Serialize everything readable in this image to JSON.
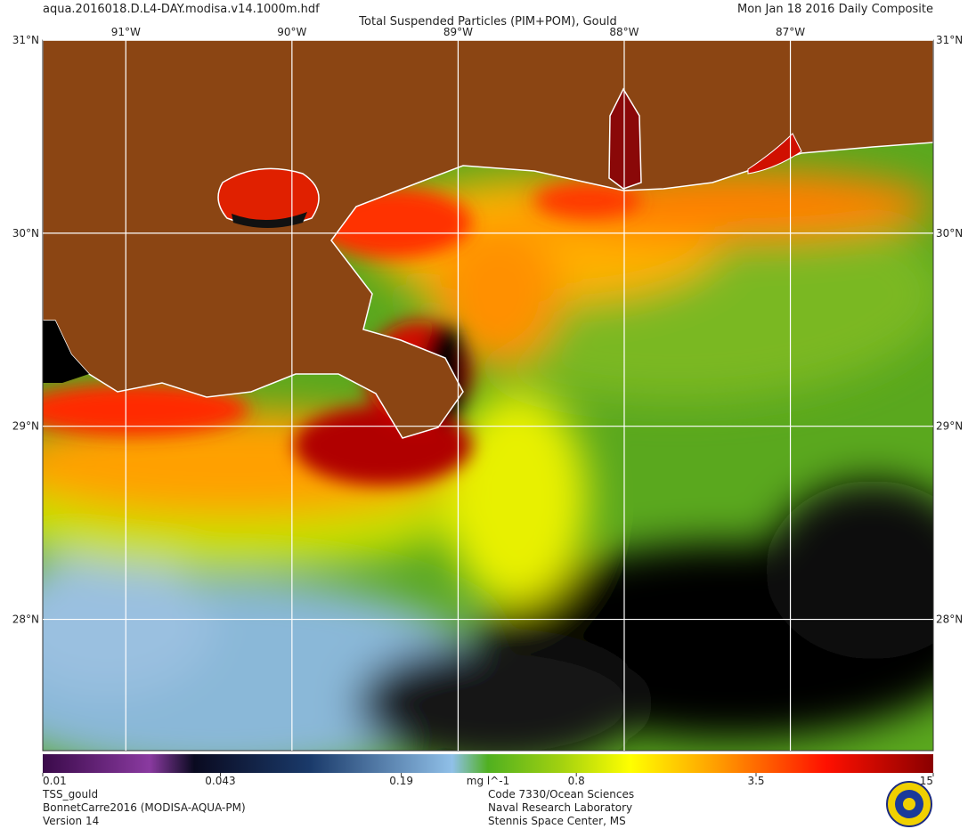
{
  "header": {
    "file": "aqua.2016018.D.L4-DAY.modisa.v14.1000m.hdf",
    "title": "Total Suspended Particles (PIM+POM), Gould",
    "date": "Mon Jan 18 2016 Daily Composite"
  },
  "map": {
    "xlim": [
      -91.5,
      -86.14
    ],
    "ylim": [
      27.32,
      31
    ],
    "lon_ticks": [
      {
        "value": -91,
        "label": "91°W"
      },
      {
        "value": -90,
        "label": "90°W"
      },
      {
        "value": -89,
        "label": "89°W"
      },
      {
        "value": -88,
        "label": "88°W"
      },
      {
        "value": -87,
        "label": "87°W"
      }
    ],
    "lat_ticks": [
      {
        "value": 31,
        "label": "31°N"
      },
      {
        "value": 30,
        "label": "30°N"
      },
      {
        "value": 29,
        "label": "29°N"
      },
      {
        "value": 28,
        "label": "28°N"
      }
    ]
  },
  "colorbar": {
    "lim": [
      0.01,
      15
    ],
    "log": true,
    "ticks": [
      0.01,
      0.043,
      0.19,
      0.8,
      3.5,
      15
    ],
    "unit": "mg l^-1"
  },
  "footer": {
    "left": [
      "TSS_gould",
      "BonnetCarre2016 (MODISA-AQUA-PM)",
      "Version 14"
    ],
    "center": [
      "Code 7330/Ocean Sciences",
      "Naval Research Laboratory",
      "Stennis Space Center, MS"
    ]
  }
}
